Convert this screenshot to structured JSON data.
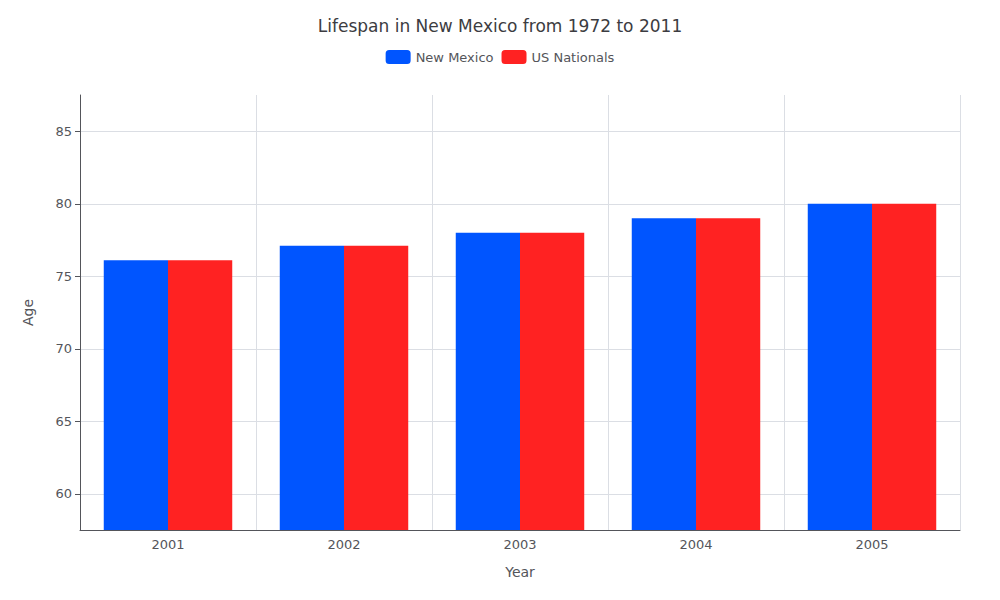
{
  "chart_data": {
    "type": "bar",
    "title": "Lifespan in New Mexico from 1972 to 2011",
    "x_label": "Year",
    "y_label": "Age",
    "categories": [
      "2001",
      "2002",
      "2003",
      "2004",
      "2005"
    ],
    "series": [
      {
        "name": "New Mexico",
        "color": "#0055ff",
        "values": [
          76.1,
          77.1,
          78.0,
          79.0,
          80.0
        ]
      },
      {
        "name": "US Nationals",
        "color": "#ff2222",
        "values": [
          76.1,
          77.1,
          78.0,
          79.0,
          80.0
        ]
      }
    ],
    "ylim": [
      57.5,
      87.5
    ],
    "yticks": [
      60,
      65,
      70,
      75,
      80,
      85
    ],
    "grid": true,
    "legend": "top"
  }
}
